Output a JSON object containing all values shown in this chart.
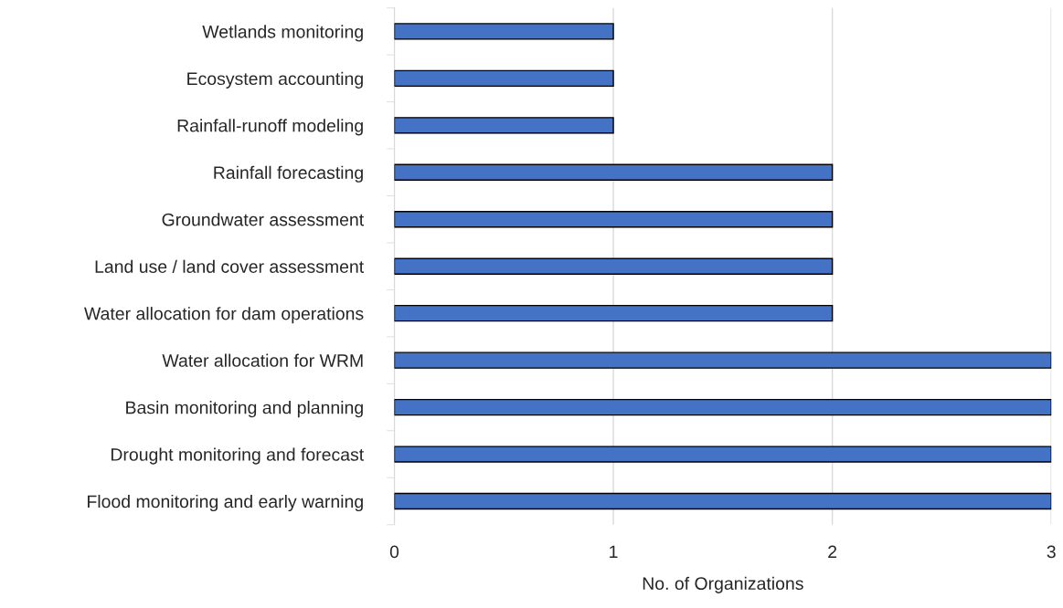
{
  "chart_data": {
    "type": "bar",
    "orientation": "horizontal",
    "xlabel": "No. of Organizations",
    "categories": [
      "Wetlands monitoring",
      "Ecosystem accounting",
      "Rainfall-runoff modeling",
      "Rainfall forecasting",
      "Groundwater assessment",
      "Land use / land cover assessment",
      "Water allocation for dam operations",
      "Water allocation for WRM",
      "Basin monitoring and planning",
      "Drought monitoring and forecast",
      "Flood monitoring and early warning"
    ],
    "values": [
      1,
      1,
      1,
      2,
      2,
      2,
      2,
      3,
      3,
      3,
      3
    ],
    "color": "#4472c4",
    "xlim": [
      0,
      3
    ],
    "xticks": [
      0,
      1,
      2,
      3
    ],
    "grid": "x"
  }
}
